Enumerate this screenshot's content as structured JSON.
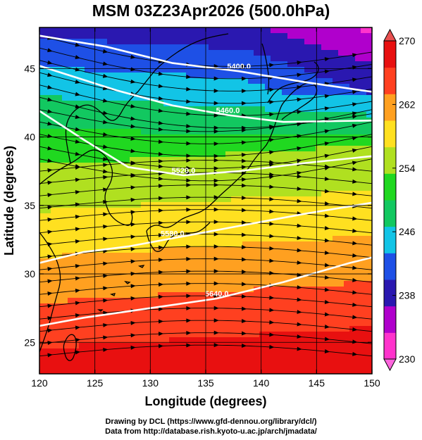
{
  "title": "MSM 03Z23Apr2026 (500.0hPa)",
  "x_axis": {
    "label": "Longitude (degrees)",
    "ticks": [
      "120",
      "125",
      "130",
      "135",
      "140",
      "145",
      "150"
    ],
    "range": [
      120,
      150
    ]
  },
  "y_axis": {
    "label": "Latitude  (degrees)",
    "ticks": [
      "25",
      "30",
      "35",
      "40",
      "45"
    ],
    "range": [
      22.7,
      48
    ]
  },
  "colorbar": {
    "ticks": [
      "230",
      "238",
      "246",
      "254",
      "262",
      "270"
    ],
    "min": 230,
    "max": 270,
    "colors": [
      "#ff33cc",
      "#b000cc",
      "#2a18b0",
      "#1e50e6",
      "#12c4e6",
      "#12c860",
      "#20d820",
      "#b0e020",
      "#ffe020",
      "#ffa020",
      "#ff4020",
      "#e81010"
    ]
  },
  "contours": [
    {
      "label": "5400.0",
      "points": [
        [
          120,
          47.4
        ],
        [
          126,
          46.6
        ],
        [
          132,
          45.4
        ],
        [
          138,
          44.8
        ],
        [
          144,
          44.0
        ],
        [
          150,
          43.3
        ]
      ]
    },
    {
      "label": "5460.0",
      "points": [
        [
          120,
          45.2
        ],
        [
          127,
          43.4
        ],
        [
          132,
          42.3
        ],
        [
          137,
          41.6
        ],
        [
          142,
          41.1
        ],
        [
          150,
          41.2
        ]
      ]
    },
    {
      "label": "5520.0",
      "points": [
        [
          120,
          41.9
        ],
        [
          124,
          39.8
        ],
        [
          128,
          37.8
        ],
        [
          133,
          37.2
        ],
        [
          138,
          37.5
        ],
        [
          144,
          38.1
        ],
        [
          150,
          38.6
        ]
      ]
    },
    {
      "label": "5580.0",
      "points": [
        [
          120,
          30.8
        ],
        [
          124,
          31.6
        ],
        [
          128,
          32.0
        ],
        [
          132,
          32.6
        ],
        [
          138,
          33.5
        ],
        [
          144,
          34.4
        ],
        [
          150,
          35.2
        ]
      ]
    },
    {
      "label": "5640.0",
      "points": [
        [
          120,
          26.2
        ],
        [
          124,
          26.8
        ],
        [
          130,
          27.5
        ],
        [
          136,
          28.2
        ],
        [
          142,
          29.4
        ],
        [
          148,
          30.8
        ],
        [
          150,
          31.2
        ]
      ]
    }
  ],
  "credits": [
    "Drawing by DCL (https://www.gfd-dennou.org/library/dcl/)",
    "Data from http://database.rish.kyoto-u.ac.jp/arch/jmadata/"
  ]
}
